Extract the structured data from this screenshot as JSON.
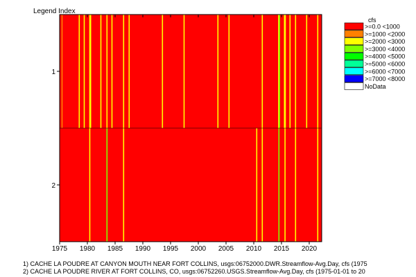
{
  "chart_data": {
    "type": "heatmap",
    "title": "",
    "ylabel": "Legend Index",
    "xlabel": "",
    "x_range": [
      "1975-01-01",
      "2022-04-01"
    ],
    "x_ticks": [
      "1975",
      "1980",
      "1985",
      "1990",
      "1995",
      "2000",
      "2005",
      "2010",
      "2015",
      "2020"
    ],
    "rows": [
      {
        "index": "1",
        "base_class": 0,
        "stripes": [
          {
            "year": 1975.4,
            "class": 1
          },
          {
            "year": 1978.5,
            "class": 2
          },
          {
            "year": 1979.4,
            "class": 2
          },
          {
            "year": 1980.4,
            "class": 2
          },
          {
            "year": 1980.55,
            "class": 2
          },
          {
            "year": 1982.4,
            "class": 2
          },
          {
            "year": 1983.5,
            "class": 2
          },
          {
            "year": 1984.4,
            "class": 2
          },
          {
            "year": 1986.5,
            "class": 2
          },
          {
            "year": 1987.5,
            "class": 2
          },
          {
            "year": 1993.5,
            "class": 2
          },
          {
            "year": 1997.4,
            "class": 2
          },
          {
            "year": 2003.5,
            "class": 2
          },
          {
            "year": 2005.5,
            "class": 2
          },
          {
            "year": 2011.5,
            "class": 2
          },
          {
            "year": 2014.45,
            "class": 2
          },
          {
            "year": 2014.6,
            "class": 3
          },
          {
            "year": 2015.5,
            "class": 2
          },
          {
            "year": 2015.65,
            "class": 2
          },
          {
            "year": 2016.5,
            "class": 2
          },
          {
            "year": 2017.5,
            "class": 2
          },
          {
            "year": 2019.5,
            "class": 2
          },
          {
            "year": 2021.5,
            "class": 2
          }
        ]
      },
      {
        "index": "2",
        "base_class": 0,
        "stripes": [
          {
            "year": 1980.4,
            "class": 2
          },
          {
            "year": 1983.5,
            "class": 3
          },
          {
            "year": 1986.5,
            "class": 2
          },
          {
            "year": 2010.5,
            "class": 2
          },
          {
            "year": 2011.5,
            "class": 2
          },
          {
            "year": 2014.5,
            "class": 3
          },
          {
            "year": 2015.6,
            "class": 2
          },
          {
            "year": 2017.5,
            "class": 2
          },
          {
            "year": 2021.5,
            "class": 2
          }
        ]
      }
    ],
    "legend": {
      "title": "cfs",
      "position": "top-right",
      "entries": [
        {
          "label": ">=0.0 <1000",
          "color": "#ff0000"
        },
        {
          "label": ">=1000 <2000",
          "color": "#ff8000"
        },
        {
          "label": ">=2000 <3000",
          "color": "#ffff00"
        },
        {
          "label": ">=3000 <4000",
          "color": "#80ff00"
        },
        {
          "label": ">=4000 <5000",
          "color": "#00ff00"
        },
        {
          "label": ">=5000 <6000",
          "color": "#00ff99"
        },
        {
          "label": ">=6000 <7000",
          "color": "#00ffff"
        },
        {
          "label": ">=7000 <8000",
          "color": "#0000ff"
        },
        {
          "label": "NoData",
          "color": "#ffffff"
        }
      ]
    },
    "footnotes": [
      "1) CACHE LA POUDRE AT CANYON MOUTH NEAR FORT COLLINS, usgs:06752000.DWR.Streamflow-Avg.Day, cfs (1975",
      "2) CACHE LA POUDRE RIVER AT FORT COLLINS, CO, usgs:06752260.USGS.Streamflow-Avg.Day, cfs (1975-01-01 to 20"
    ]
  }
}
